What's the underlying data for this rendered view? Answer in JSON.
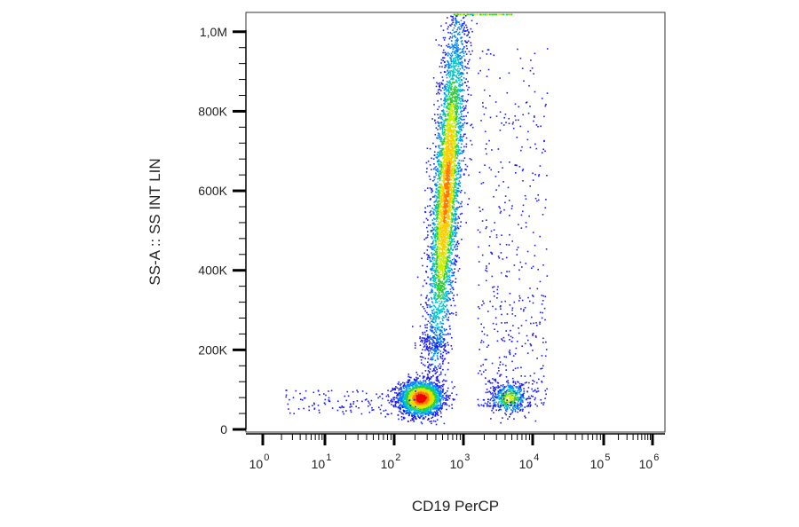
{
  "chart_data": {
    "type": "scatter",
    "title": "",
    "xlabel": "CD19 PerCP",
    "ylabel": "SS-A :: SS INT LIN",
    "x_scale": "log",
    "xlim": [
      1,
      1000000
    ],
    "ylim": [
      0,
      1048576
    ],
    "grid": false,
    "legend": "none",
    "x_ticks": [
      {
        "value": 1,
        "base": "10",
        "exp": "0"
      },
      {
        "value": 10,
        "base": "10",
        "exp": "1"
      },
      {
        "value": 100,
        "base": "10",
        "exp": "2"
      },
      {
        "value": 1000,
        "base": "10",
        "exp": "3"
      },
      {
        "value": 10000,
        "base": "10",
        "exp": "4"
      },
      {
        "value": 100000,
        "base": "10",
        "exp": "5"
      },
      {
        "value": 1000000,
        "base": "10",
        "exp": "6"
      }
    ],
    "y_ticks": [
      {
        "value": 0,
        "label": "0"
      },
      {
        "value": 200000,
        "label": "200K"
      },
      {
        "value": 400000,
        "label": "400K"
      },
      {
        "value": 600000,
        "label": "600K"
      },
      {
        "value": 800000,
        "label": "800K"
      },
      {
        "value": 1000000,
        "label": "1,0M"
      }
    ],
    "density_colors": [
      "#1a1aff",
      "#0080ff",
      "#00c8c8",
      "#33cc33",
      "#ccee00",
      "#ffcc00",
      "#ff7700",
      "#ee0000"
    ],
    "populations": [
      {
        "x_center": 240,
        "y_center": 80000,
        "x_spread_decades": 0.16,
        "y_spread": 22000,
        "count": 2200
      },
      {
        "x_center": 560,
        "y_center": 600000,
        "x_spread_decades": 0.1,
        "y_spread": 230000,
        "count": 4200
      },
      {
        "x_center": 4500,
        "y_center": 80000,
        "x_spread_decades": 0.14,
        "y_spread": 20000,
        "count": 450
      }
    ]
  }
}
